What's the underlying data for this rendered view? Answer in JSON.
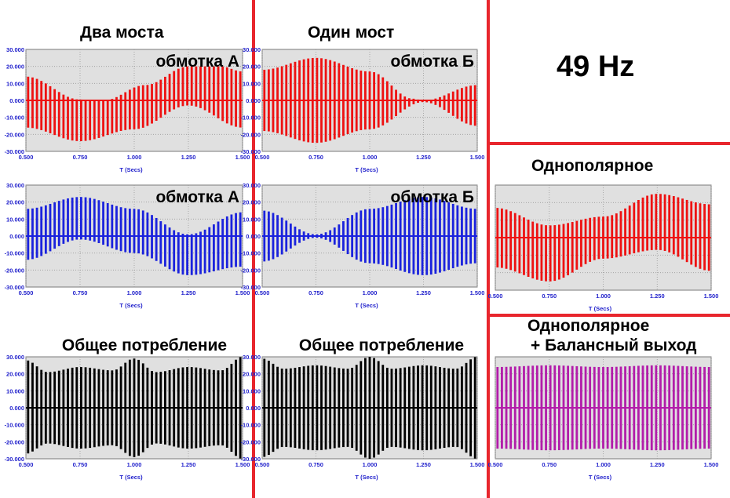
{
  "page": {
    "frequency": "49 Hz",
    "headings": {
      "two_bridges": "Два моста",
      "one_bridge": "Один мост",
      "unipolar": "Однополярное",
      "unipolar_balanced_line1": "Однополярное",
      "unipolar_balanced_line2": "+ Балансный выход"
    },
    "colors": {
      "divider": "#e8262d",
      "plot_bg": "#e0e0e0",
      "axis_text": "#2222cc"
    }
  },
  "chart_data": [
    {
      "id": "two-bridges-winding-a-red",
      "type": "line",
      "title": "обмотка А",
      "xlabel": "T (Secs)",
      "ylabel": "",
      "xlim": [
        0.5,
        1.5
      ],
      "ylim": [
        -30,
        30
      ],
      "xticks": [
        "0.500",
        "0.750",
        "1.000",
        "1.250",
        "1.500"
      ],
      "yticks": [
        "30.000",
        "20.000",
        "10.000",
        "0.000",
        "-10.000",
        "-20.000",
        "-30.000"
      ],
      "grid": true,
      "series": [
        {
          "color": "#ee1111",
          "pos_env": {
            "x": [
              0.5,
              0.75,
              0.86,
              1.05,
              1.25,
              1.4,
              1.5
            ],
            "y": [
              14,
              0.5,
              0,
              9,
              20,
              20,
              17
            ]
          },
          "neg_env": {
            "x": [
              0.5,
              0.75,
              1.0,
              1.25,
              1.5
            ],
            "y": [
              -16,
              -24,
              -17,
              -3,
              -16
            ]
          }
        }
      ]
    },
    {
      "id": "one-bridge-winding-b-red",
      "type": "line",
      "title": "обмотка Б",
      "xlabel": "T (Secs)",
      "ylabel": "",
      "xlim": [
        0.5,
        1.5
      ],
      "ylim": [
        -30,
        30
      ],
      "xticks": [
        "0.500",
        "0.750",
        "1.000",
        "1.250",
        "1.500"
      ],
      "yticks": [
        "30.000",
        "20.000",
        "10.000",
        "0.000",
        "-10.000",
        "-20.000",
        "-30.000"
      ],
      "grid": true,
      "series": [
        {
          "color": "#ee1111",
          "pos_env": {
            "x": [
              0.5,
              0.75,
              1.0,
              1.2,
              1.25,
              1.5
            ],
            "y": [
              18,
              25,
              17,
              1,
              0,
              9
            ]
          },
          "neg_env": {
            "x": [
              0.5,
              0.75,
              1.0,
              1.25,
              1.5
            ],
            "y": [
              -18,
              -25,
              -17,
              -1,
              -15
            ]
          }
        }
      ]
    },
    {
      "id": "two-bridges-winding-a-blue",
      "type": "line",
      "title": "обмотка А",
      "xlabel": "T (Secs)",
      "ylabel": "",
      "xlim": [
        0.5,
        1.5
      ],
      "ylim": [
        -30,
        30
      ],
      "xticks": [
        "0.500",
        "0.750",
        "1.000",
        "1.250",
        "1.500"
      ],
      "yticks": [
        "30.000",
        "20.000",
        "10.000",
        "0.000",
        "-10.000",
        "-20.000",
        "-30.000"
      ],
      "grid": true,
      "series": [
        {
          "color": "#1a22dd",
          "pos_env": {
            "x": [
              0.5,
              0.75,
              1.0,
              1.25,
              1.5
            ],
            "y": [
              16,
              23,
              16,
              1,
              14
            ]
          },
          "neg_env": {
            "x": [
              0.5,
              0.75,
              1.0,
              1.25,
              1.5
            ],
            "y": [
              -14,
              -2,
              -10,
              -23,
              -18
            ]
          }
        }
      ]
    },
    {
      "id": "one-bridge-winding-b-blue",
      "type": "line",
      "title": "обмотка Б",
      "xlabel": "T (Secs)",
      "ylabel": "",
      "xlim": [
        0.5,
        1.5
      ],
      "ylim": [
        -30,
        30
      ],
      "xticks": [
        "0.500",
        "0.750",
        "1.000",
        "1.250",
        "1.500"
      ],
      "yticks": [
        "30.000",
        "20.000",
        "10.000",
        "0.000",
        "-10.000",
        "-20.000",
        "-30.000"
      ],
      "grid": true,
      "series": [
        {
          "color": "#1a22dd",
          "pos_env": {
            "x": [
              0.5,
              0.75,
              1.0,
              1.25,
              1.5
            ],
            "y": [
              15,
              1,
              16,
              23,
              16
            ]
          },
          "neg_env": {
            "x": [
              0.5,
              0.75,
              1.0,
              1.25,
              1.5
            ],
            "y": [
              -15,
              -1,
              -16,
              -23,
              -16
            ]
          }
        }
      ]
    },
    {
      "id": "two-bridges-total",
      "type": "line",
      "title": "Общее потребление",
      "xlabel": "T (Secs)",
      "ylabel": "",
      "xlim": [
        0.5,
        1.5
      ],
      "ylim": [
        -30,
        30
      ],
      "xticks": [
        "0.500",
        "0.750",
        "1.000",
        "1.250",
        "1.500"
      ],
      "yticks": [
        "30.000",
        "20.000",
        "10.000",
        "0.000",
        "-10.000",
        "-20.000",
        "-30.000"
      ],
      "grid": true,
      "series": [
        {
          "color": "#000000",
          "pos_env": {
            "x": [
              0.5,
              0.6,
              0.75,
              0.9,
              1.0,
              1.1,
              1.25,
              1.4,
              1.5
            ],
            "y": [
              28,
              21,
              24,
              22,
              29,
              21,
              24,
              22,
              30
            ]
          },
          "neg_env": {
            "x": [
              0.5,
              0.6,
              0.75,
              0.9,
              1.0,
              1.1,
              1.25,
              1.4,
              1.5
            ],
            "y": [
              -27,
              -21,
              -24,
              -22,
              -29,
              -21,
              -24,
              -22,
              -30
            ]
          }
        }
      ]
    },
    {
      "id": "one-bridge-total",
      "type": "line",
      "title": "Общее потребление",
      "xlabel": "T (Secs)",
      "ylabel": "",
      "xlim": [
        0.5,
        1.5
      ],
      "ylim": [
        -30,
        30
      ],
      "xticks": [
        "0.500",
        "0.750",
        "1.000",
        "1.250",
        "1.500"
      ],
      "yticks": [
        "30.000",
        "20.000",
        "10.000",
        "0.000",
        "-10.000",
        "-20.000",
        "-30.000"
      ],
      "grid": true,
      "series": [
        {
          "color": "#000000",
          "pos_env": {
            "x": [
              0.5,
              0.6,
              0.75,
              0.9,
              1.0,
              1.1,
              1.25,
              1.4,
              1.5
            ],
            "y": [
              29,
              23,
              25,
              23,
              30,
              23,
              25,
              23,
              30
            ]
          },
          "neg_env": {
            "x": [
              0.5,
              0.6,
              0.75,
              0.9,
              1.0,
              1.1,
              1.25,
              1.4,
              1.5
            ],
            "y": [
              -29,
              -23,
              -25,
              -23,
              -30,
              -23,
              -25,
              -23,
              -30
            ]
          }
        }
      ]
    },
    {
      "id": "unipolar-red",
      "type": "line",
      "title": "",
      "xlabel": "T (Secs)",
      "ylabel": "",
      "xlim": [
        0.5,
        1.5
      ],
      "ylim": [
        -30,
        30
      ],
      "xticks": [
        "0.500",
        "0.750",
        "1.000",
        "1.250",
        "1.500"
      ],
      "yticks": [],
      "grid": true,
      "series": [
        {
          "color": "#ee1111",
          "pos_env": {
            "x": [
              0.5,
              0.75,
              1.0,
              1.25,
              1.5
            ],
            "y": [
              17,
              7,
              12,
              25,
              19
            ]
          },
          "neg_env": {
            "x": [
              0.5,
              0.75,
              1.0,
              1.25,
              1.5
            ],
            "y": [
              -17,
              -25,
              -12,
              -7,
              -19
            ]
          }
        }
      ]
    },
    {
      "id": "unipolar-balanced-magenta",
      "type": "line",
      "title": "",
      "xlabel": "T (Secs)",
      "ylabel": "",
      "xlim": [
        0.5,
        1.5
      ],
      "ylim": [
        -30,
        30
      ],
      "xticks": [
        "0.500",
        "0.750",
        "1.000",
        "1.250",
        "1.500"
      ],
      "yticks": [],
      "grid": true,
      "series": [
        {
          "color": "#b21caa",
          "pos_env": {
            "x": [
              0.5,
              0.75,
              1.0,
              1.25,
              1.5
            ],
            "y": [
              24,
              25,
              24,
              25,
              24
            ]
          },
          "neg_env": {
            "x": [
              0.5,
              0.75,
              1.0,
              1.25,
              1.5
            ],
            "y": [
              -24,
              -25,
              -24,
              -25,
              -24
            ]
          }
        }
      ]
    }
  ]
}
